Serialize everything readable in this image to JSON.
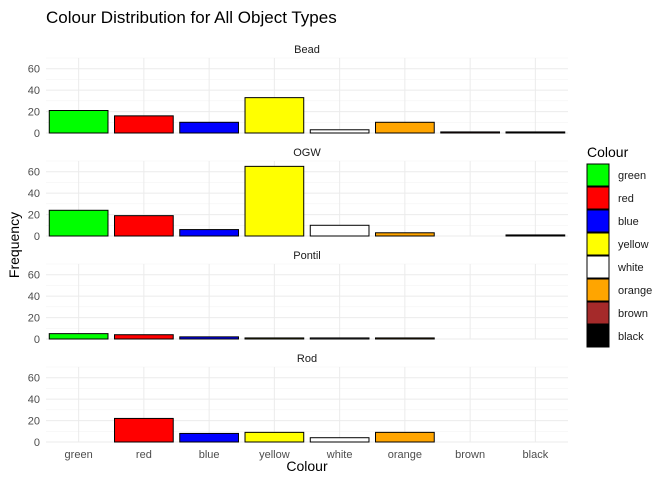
{
  "chart_data": {
    "type": "bar",
    "title": "Colour Distribution for All Object Types",
    "xlabel": "Colour",
    "ylabel": "Frequency",
    "categories": [
      "green",
      "red",
      "blue",
      "yellow",
      "white",
      "orange",
      "brown",
      "black"
    ],
    "ylim": [
      0,
      70
    ],
    "yticks": [
      0,
      20,
      40,
      60
    ],
    "grid": true,
    "facets": [
      {
        "name": "Bead",
        "values": [
          21,
          16,
          10,
          33,
          3,
          10,
          1,
          1
        ]
      },
      {
        "name": "OGW",
        "values": [
          24,
          19,
          6,
          65,
          10,
          3,
          null,
          1
        ]
      },
      {
        "name": "Pontil",
        "values": [
          5,
          4,
          2,
          1,
          1,
          1,
          null,
          null
        ]
      },
      {
        "name": "Rod",
        "values": [
          null,
          22,
          8,
          9,
          4,
          9,
          null,
          null
        ]
      }
    ],
    "legend": {
      "title": "Colour",
      "placement": "right",
      "items": [
        {
          "label": "green",
          "color": "#00ff00"
        },
        {
          "label": "red",
          "color": "#ff0000"
        },
        {
          "label": "blue",
          "color": "#0000ff"
        },
        {
          "label": "yellow",
          "color": "#ffff00"
        },
        {
          "label": "white",
          "color": "#ffffff"
        },
        {
          "label": "orange",
          "color": "#ffa500"
        },
        {
          "label": "brown",
          "color": "#a52a2a"
        },
        {
          "label": "black",
          "color": "#000000"
        }
      ]
    }
  }
}
